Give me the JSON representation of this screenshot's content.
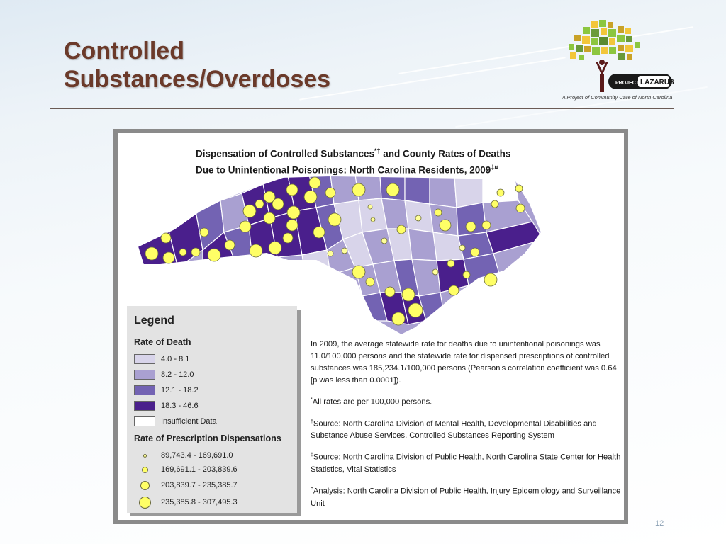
{
  "slide": {
    "title_line1": "Controlled",
    "title_line2": "Substances/Overdoses",
    "page_number": "12"
  },
  "logo": {
    "brand_prefix": "PROJECT",
    "brand_name": "LAZARUS",
    "tagline": "A Project of Community Care of North Carolina"
  },
  "figure": {
    "title_line1_a": "Dispensation of Controlled Substances",
    "title_line1_sup": "*†",
    "title_line1_b": " and County Rates of Deaths",
    "title_line2_a": "Due to Unintentional Poisonings: North Carolina Residents, 2009",
    "title_line2_sup": "‡¤"
  },
  "legend": {
    "title": "Legend",
    "rate_of_death_title": "Rate of Death",
    "rate_of_death": [
      {
        "label": "4.0 - 8.1",
        "color": "#d8d4ea"
      },
      {
        "label": "8.2 - 12.0",
        "color": "#a9a0d1"
      },
      {
        "label": "12.1 - 18.2",
        "color": "#7363b3"
      },
      {
        "label": "18.3 - 46.6",
        "color": "#4a1f8c"
      },
      {
        "label": "Insufficient Data",
        "color": "#ffffff"
      }
    ],
    "prescription_title": "Rate of Prescription Dispensations",
    "prescription": [
      {
        "label": "89,743.4 - 169,691.0"
      },
      {
        "label": "169,691.1 - 203,839.6"
      },
      {
        "label": "203,839.7 - 235,385.7"
      },
      {
        "label": "235,385.8 - 307,495.3"
      }
    ]
  },
  "notes": {
    "summary": "In 2009, the average statewide rate for deaths due to unintentional poisonings was 11.0/100,000 persons and the statewide rate for dispensed prescriptions of controlled substances was 185,234.1/100,000 persons (Pearson's correlation coefficient was 0.64 [p was less than 0.0001]).",
    "rates_mark": "*",
    "rates": "All rates are per 100,000 persons.",
    "source1_mark": "†",
    "source1": "Source: North Carolina Division of Mental Health, Developmental Disabilities and Substance Abuse Services, Controlled Substances Reporting System",
    "source2_mark": "‡",
    "source2": "Source: North Carolina Division of Public Health, North Carolina State Center for Health Statistics, Vital Statistics",
    "analysis_mark": "¤",
    "analysis": "Analysis: North Carolina Division of Public Health, Injury Epidemiology and Surveillance Unit"
  }
}
